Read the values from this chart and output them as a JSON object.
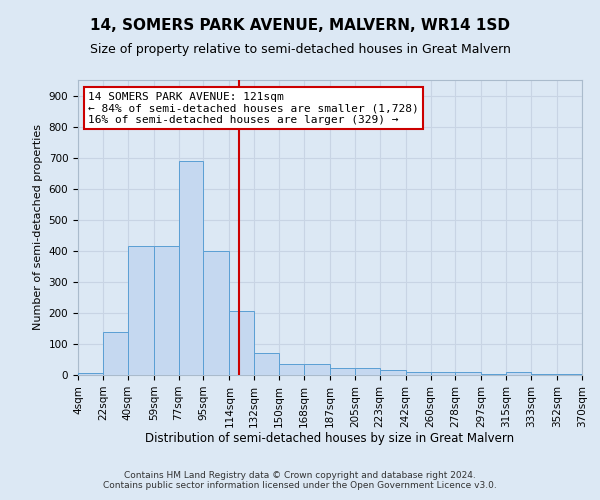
{
  "title": "14, SOMERS PARK AVENUE, MALVERN, WR14 1SD",
  "subtitle": "Size of property relative to semi-detached houses in Great Malvern",
  "xlabel": "Distribution of semi-detached houses by size in Great Malvern",
  "ylabel": "Number of semi-detached properties",
  "footer_line1": "Contains HM Land Registry data © Crown copyright and database right 2024.",
  "footer_line2": "Contains public sector information licensed under the Open Government Licence v3.0.",
  "annotation_line1": "14 SOMERS PARK AVENUE: 121sqm",
  "annotation_line2": "← 84% of semi-detached houses are smaller (1,728)",
  "annotation_line3": "16% of semi-detached houses are larger (329) →",
  "property_size": 121,
  "bin_edges": [
    4,
    22,
    40,
    59,
    77,
    95,
    114,
    132,
    150,
    168,
    187,
    205,
    223,
    242,
    260,
    278,
    297,
    315,
    333,
    352,
    370
  ],
  "bin_counts": [
    5,
    138,
    415,
    415,
    690,
    400,
    205,
    70,
    37,
    37,
    22,
    22,
    16,
    10,
    10,
    10,
    2,
    10,
    2,
    2
  ],
  "bar_color": "#c5d8f0",
  "bar_edge_color": "#5a9fd4",
  "vline_color": "#cc0000",
  "vline_x": 121,
  "annotation_box_edge": "#cc0000",
  "annotation_box_face": "#ffffff",
  "grid_color": "#c8d4e4",
  "background_color": "#dce8f4",
  "ylim": [
    0,
    950
  ],
  "yticks": [
    0,
    100,
    200,
    300,
    400,
    500,
    600,
    700,
    800,
    900
  ],
  "title_fontsize": 11,
  "subtitle_fontsize": 9,
  "ylabel_fontsize": 8,
  "xlabel_fontsize": 8.5,
  "tick_fontsize": 7.5,
  "footer_fontsize": 6.5,
  "annot_fontsize": 8
}
